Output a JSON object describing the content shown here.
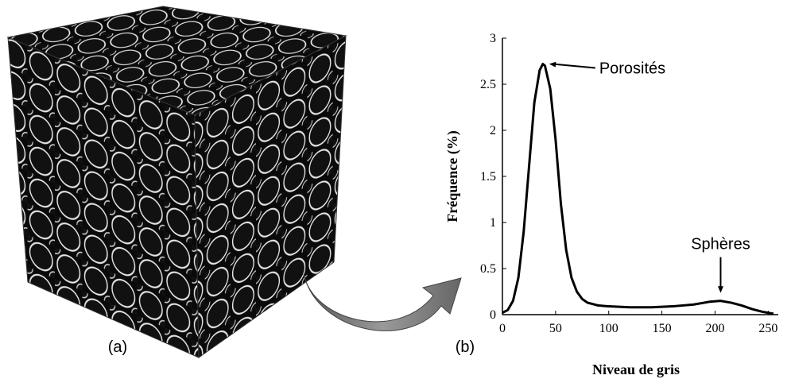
{
  "panel_labels": [
    "(a)",
    "(b)"
  ],
  "chart_data": {
    "type": "line",
    "xlabel": "Niveau de gris",
    "ylabel": "Fréquence (%)",
    "x": [
      0,
      5,
      10,
      15,
      20,
      25,
      30,
      35,
      38,
      40,
      45,
      50,
      55,
      60,
      65,
      70,
      75,
      80,
      90,
      100,
      120,
      140,
      160,
      180,
      195,
      205,
      215,
      225,
      235,
      245,
      255
    ],
    "series": [
      {
        "color": "#000000",
        "values": [
          0.02,
          0.05,
          0.15,
          0.4,
          0.9,
          1.6,
          2.3,
          2.65,
          2.72,
          2.7,
          2.45,
          1.9,
          1.2,
          0.7,
          0.4,
          0.25,
          0.17,
          0.13,
          0.1,
          0.09,
          0.08,
          0.08,
          0.09,
          0.11,
          0.14,
          0.15,
          0.13,
          0.1,
          0.06,
          0.03,
          0.01
        ]
      }
    ],
    "xlim": [
      0,
      255
    ],
    "ylim": [
      0,
      3
    ],
    "xticks": [
      0,
      50,
      100,
      150,
      200,
      250
    ],
    "yticks": [
      0,
      0.5,
      1,
      1.5,
      2,
      2.5,
      3
    ],
    "annotations": [
      {
        "text": "Porosités",
        "x": 38,
        "y": 2.72
      },
      {
        "text": "Sphères",
        "x": 203,
        "y": 0.15
      }
    ]
  }
}
